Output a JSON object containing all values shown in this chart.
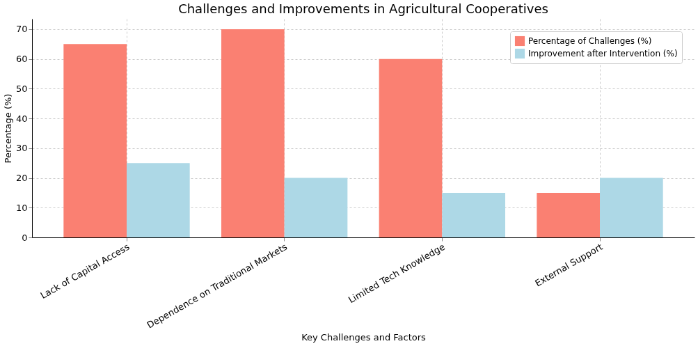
{
  "chart_data": {
    "type": "bar",
    "title": "Challenges and Improvements in Agricultural Cooperatives",
    "xlabel": "Key Challenges and Factors",
    "ylabel": "Percentage (%)",
    "categories": [
      "Lack of Capital Access",
      "Dependence on Traditional Markets",
      "Limited Tech Knowledge",
      "External Support"
    ],
    "series": [
      {
        "name": "Percentage of Challenges (%)",
        "color": "#fa8072",
        "values": [
          65,
          70,
          60,
          15
        ]
      },
      {
        "name": "Improvement after Intervention (%)",
        "color": "#add8e6",
        "values": [
          25,
          20,
          15,
          20
        ]
      }
    ],
    "ylim": [
      0,
      73.5
    ],
    "yticks": [
      0,
      10,
      20,
      30,
      40,
      50,
      60,
      70
    ],
    "grid": true,
    "legend": "top right"
  }
}
